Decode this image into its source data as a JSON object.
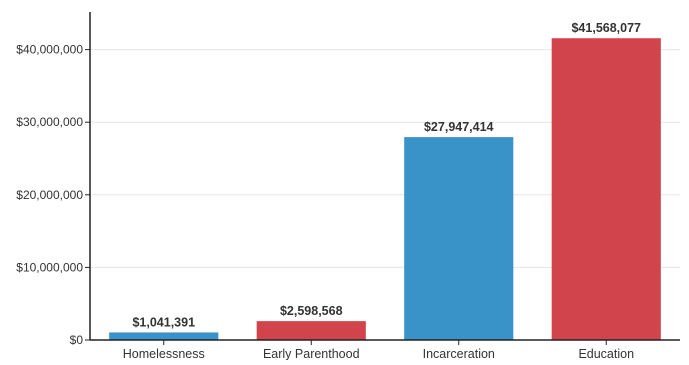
{
  "chart_data": {
    "type": "bar",
    "categories": [
      "Homelessness",
      "Early Parenthood",
      "Incarceration",
      "Education"
    ],
    "values": [
      1041391,
      2598568,
      27947414,
      41568077
    ],
    "value_labels": [
      "$1,041,391",
      "$2,598,568",
      "$27,947,414",
      "$41,568,077"
    ],
    "bar_colors": [
      "#3a93c8",
      "#d2444c",
      "#3a93c8",
      "#d2444c"
    ],
    "y_ticks": [
      0,
      10000000,
      20000000,
      30000000,
      40000000
    ],
    "y_tick_labels": [
      "$0",
      "$10,000,000",
      "$20,000,000",
      "$30,000,000",
      "$40,000,000"
    ],
    "ylim": [
      0,
      44500000
    ],
    "grid": true,
    "title": "",
    "xlabel": "",
    "ylabel": ""
  }
}
